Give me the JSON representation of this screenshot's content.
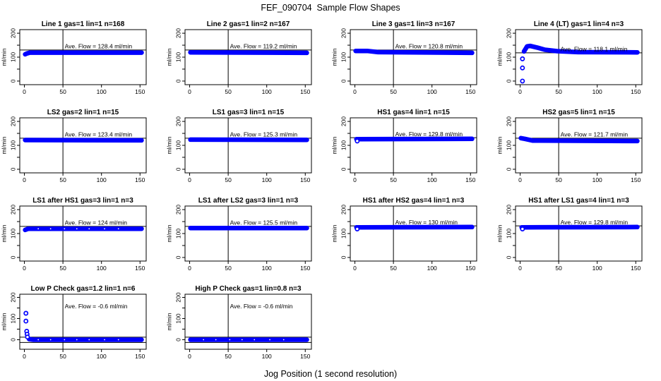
{
  "page": {
    "title": "FEF_090704  Sample Flow Shapes",
    "xlabel": "Jog Position (1 second resolution)"
  },
  "axes": {
    "ylabel": "ml/min",
    "x_ticks": [
      0,
      50,
      100,
      150
    ],
    "y_ticks": [
      0,
      50,
      100,
      150,
      200
    ],
    "y_labeled_ticks": [
      0,
      100,
      200
    ],
    "marker_vline_x": 50,
    "xlim": [
      0,
      152
    ],
    "point_color": "#0000ff",
    "line_color": "#000000"
  },
  "chart_data": [
    {
      "type": "scatter",
      "title": "Line 1 gas=1 lin=1 n=168",
      "ave_flow": 128.4,
      "ave_label": "Ave. Flow =  128.4  ml/min",
      "hlines": [
        130
      ],
      "ylim": [
        -15,
        215
      ],
      "band": [
        [
          1,
          112
        ],
        [
          3,
          115
        ],
        [
          7,
          119
        ],
        [
          152,
          119
        ]
      ],
      "points": [],
      "sparse": false
    },
    {
      "type": "scatter",
      "title": "Line 2 gas=1 lin=2 n=167",
      "ave_flow": 119.2,
      "ave_label": "Ave. Flow =  119.2  ml/min",
      "hlines": [
        130
      ],
      "ylim": [
        -15,
        215
      ],
      "band": [
        [
          1,
          120
        ],
        [
          152,
          118
        ]
      ],
      "points": [],
      "sparse": false
    },
    {
      "type": "scatter",
      "title": "Line 3 gas=1 lin=3 n=167",
      "ave_flow": 120.8,
      "ave_label": "Ave. Flow =  120.8  ml/min",
      "hlines": [
        130
      ],
      "ylim": [
        -15,
        215
      ],
      "band": [
        [
          1,
          126
        ],
        [
          16,
          126
        ],
        [
          30,
          121
        ],
        [
          152,
          118
        ]
      ],
      "points": [],
      "sparse": false
    },
    {
      "type": "scatter",
      "title": "Line 4 (LT) gas=1 lin=4 n=3",
      "ave_flow": 118.1,
      "ave_label": "Ave. Flow =  118.1  ml/min",
      "hlines": [
        118
      ],
      "ylim": [
        -15,
        215
      ],
      "band": [
        [
          5,
          124
        ],
        [
          9,
          145
        ],
        [
          13,
          147
        ],
        [
          22,
          140
        ],
        [
          32,
          131
        ],
        [
          48,
          125
        ],
        [
          75,
          121
        ],
        [
          152,
          120
        ]
      ],
      "points": [
        [
          3,
          0
        ],
        [
          3,
          55
        ],
        [
          3,
          93
        ]
      ],
      "sparse": false
    },
    {
      "type": "scatter",
      "title": "LS2 gas=2 lin=1 n=15",
      "ave_flow": 123.4,
      "ave_label": "Ave. Flow =  123.4  ml/min",
      "hlines": [
        130
      ],
      "ylim": [
        -15,
        215
      ],
      "band": [
        [
          1,
          122
        ],
        [
          152,
          121
        ]
      ],
      "points": [],
      "sparse": false
    },
    {
      "type": "scatter",
      "title": "LS1 gas=3 lin=1 n=15",
      "ave_flow": 125.3,
      "ave_label": "Ave. Flow =  125.3  ml/min",
      "hlines": [
        130
      ],
      "ylim": [
        -15,
        215
      ],
      "band": [
        [
          1,
          124
        ],
        [
          152,
          123
        ]
      ],
      "points": [],
      "sparse": false
    },
    {
      "type": "scatter",
      "title": "HS1 gas=4 lin=1 n=15",
      "ave_flow": 129.8,
      "ave_label": "Ave. Flow =  129.8  ml/min",
      "hlines": [
        132
      ],
      "ylim": [
        -15,
        215
      ],
      "band": [
        [
          2,
          126
        ],
        [
          152,
          127
        ]
      ],
      "points": [
        [
          3,
          118
        ]
      ],
      "sparse": false
    },
    {
      "type": "scatter",
      "title": "HS2 gas=5 lin=1 n=15",
      "ave_flow": 121.7,
      "ave_label": "Ave. Flow =  121.7  ml/min",
      "hlines": [
        130
      ],
      "ylim": [
        -15,
        215
      ],
      "band": [
        [
          1,
          130
        ],
        [
          6,
          127
        ],
        [
          16,
          120
        ],
        [
          152,
          118
        ]
      ],
      "points": [],
      "sparse": false
    },
    {
      "type": "scatter",
      "title": "LS1 after HS1 gas=3 lin=1 n=3",
      "ave_flow": 124,
      "ave_label": "Ave. Flow =  124  ml/min",
      "hlines": [
        130
      ],
      "ylim": [
        -15,
        215
      ],
      "band": [
        [
          1,
          115
        ],
        [
          5,
          120
        ],
        [
          152,
          120
        ]
      ],
      "points": [],
      "sparse": true
    },
    {
      "type": "scatter",
      "title": "LS1 after LS2 gas=3 lin=1 n=3",
      "ave_flow": 125.5,
      "ave_label": "Ave. Flow =  125.5  ml/min",
      "hlines": [
        130
      ],
      "ylim": [
        -15,
        215
      ],
      "band": [
        [
          1,
          123
        ],
        [
          152,
          123
        ]
      ],
      "points": [],
      "sparse": false
    },
    {
      "type": "scatter",
      "title": "HS1 after HS2 gas=4 lin=1 n=3",
      "ave_flow": 130,
      "ave_label": "Ave. Flow =  130  ml/min",
      "hlines": [
        132
      ],
      "ylim": [
        -15,
        215
      ],
      "band": [
        [
          2,
          126
        ],
        [
          152,
          127
        ]
      ],
      "points": [
        [
          3,
          119
        ]
      ],
      "sparse": false
    },
    {
      "type": "scatter",
      "title": "HS1 after LS1 gas=4 lin=1 n=3",
      "ave_flow": 129.8,
      "ave_label": "Ave. Flow =  129.8  ml/min",
      "hlines": [
        132
      ],
      "ylim": [
        -15,
        215
      ],
      "band": [
        [
          2,
          126
        ],
        [
          152,
          127
        ]
      ],
      "points": [
        [
          3,
          119
        ]
      ],
      "sparse": false
    },
    {
      "type": "scatter",
      "title": "Low P Check gas=1.2 lin=1 n=6",
      "ave_flow": -0.6,
      "ave_label": "Ave. Flow =  -0.6  ml/min",
      "hlines": [
        12,
        -13
      ],
      "ylim": [
        -45,
        215
      ],
      "band": [
        [
          6,
          3
        ],
        [
          12,
          0
        ],
        [
          152,
          0
        ]
      ],
      "points": [
        [
          2,
          125
        ],
        [
          2,
          88
        ],
        [
          3,
          40
        ],
        [
          3.5,
          26
        ],
        [
          4,
          13
        ]
      ],
      "sparse": true
    },
    {
      "type": "scatter",
      "title": "High P Check gas=1 lin=0.8 n=3",
      "ave_flow": -0.6,
      "ave_label": "Ave. Flow =  -0.6  ml/min",
      "hlines": [
        12,
        -13
      ],
      "ylim": [
        -45,
        215
      ],
      "band": [
        [
          1,
          0
        ],
        [
          152,
          0
        ]
      ],
      "points": [],
      "sparse": true
    }
  ]
}
